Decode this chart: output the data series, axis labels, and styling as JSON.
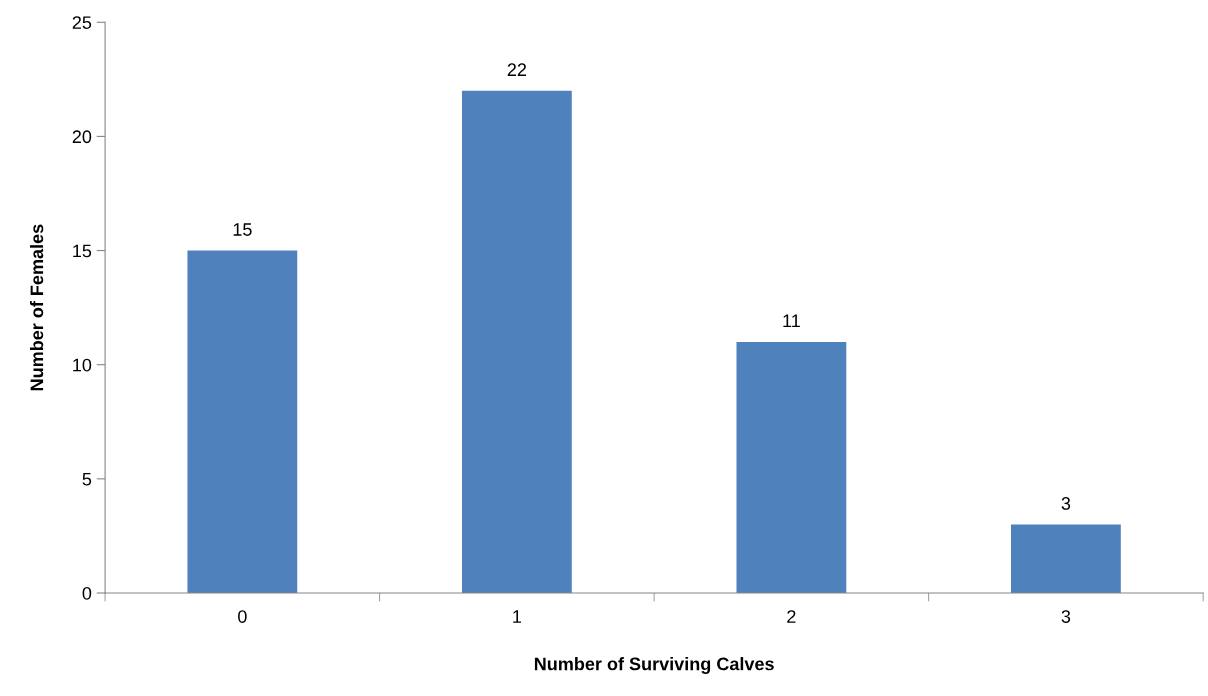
{
  "chart_data": {
    "type": "bar",
    "xlabel": "Number of Surviving Calves",
    "ylabel": "Number of Females",
    "categories": [
      "0",
      "1",
      "2",
      "3"
    ],
    "values": [
      15,
      22,
      11,
      3
    ],
    "color": "#4f81bd",
    "ylim": [
      0,
      25
    ],
    "yticks": [
      0,
      5,
      10,
      15,
      20,
      25
    ],
    "data_labels": true,
    "grid": false,
    "legend": false
  }
}
